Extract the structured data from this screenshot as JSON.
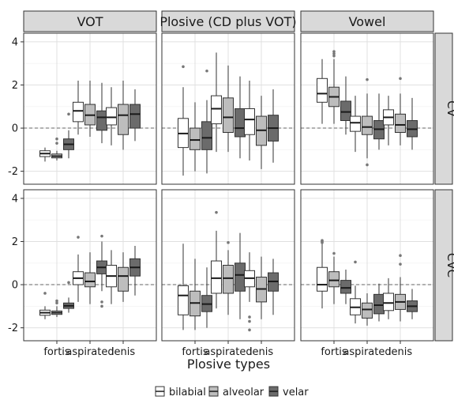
{
  "chart_data": {
    "type": "boxplot",
    "xlabel": "Plosive types",
    "ylabel": "",
    "ylim": [
      -2.6,
      4.4
    ],
    "yticks": [
      -2,
      0,
      2,
      4
    ],
    "x_categories": [
      "fortis",
      "aspirated",
      "lenis"
    ],
    "facet_columns": [
      "VOT",
      "Plosive (CD plus VOT)",
      "Vowel"
    ],
    "facet_rows": [
      "CV",
      "CVC"
    ],
    "reference_line_y": 0,
    "legend": {
      "position": "bottom",
      "items": [
        "bilabial",
        "alveolar",
        "velar"
      ]
    },
    "series_colors": {
      "bilabial": "#ffffff",
      "alveolar": "#bdbdbd",
      "velar": "#6b6b6b"
    },
    "panels": [
      {
        "col": 0,
        "row": 0,
        "boxes": [
          {
            "cat": "fortis",
            "series": "bilabial",
            "lw": -1.55,
            "q1": -1.32,
            "med": -1.18,
            "q3": -1.05,
            "uw": -0.9,
            "outliers": []
          },
          {
            "cat": "fortis",
            "series": "alveolar",
            "lw": -1.5,
            "q1": -1.38,
            "med": -1.3,
            "q3": -1.2,
            "uw": -1.05,
            "outliers": [
              -0.5,
              -0.7
            ]
          },
          {
            "cat": "fortis",
            "series": "velar",
            "lw": -1.4,
            "q1": -1.0,
            "med": -0.75,
            "q3": -0.5,
            "uw": -0.1,
            "outliers": [
              0.65
            ]
          },
          {
            "cat": "aspirated",
            "series": "bilabial",
            "lw": -0.3,
            "q1": 0.3,
            "med": 0.8,
            "q3": 1.2,
            "uw": 2.2,
            "outliers": []
          },
          {
            "cat": "aspirated",
            "series": "alveolar",
            "lw": -0.4,
            "q1": 0.15,
            "med": 0.6,
            "q3": 1.1,
            "uw": 2.2,
            "outliers": []
          },
          {
            "cat": "aspirated",
            "series": "velar",
            "lw": -0.7,
            "q1": -0.1,
            "med": 0.5,
            "q3": 0.8,
            "uw": 2.1,
            "outliers": []
          },
          {
            "cat": "lenis",
            "series": "bilabial",
            "lw": -0.8,
            "q1": 0.15,
            "med": 0.5,
            "q3": 0.95,
            "uw": 1.9,
            "outliers": []
          },
          {
            "cat": "lenis",
            "series": "alveolar",
            "lw": -1.0,
            "q1": -0.3,
            "med": 0.6,
            "q3": 1.1,
            "uw": 2.2,
            "outliers": []
          },
          {
            "cat": "lenis",
            "series": "velar",
            "lw": -0.6,
            "q1": 0.0,
            "med": 0.65,
            "q3": 1.1,
            "uw": 1.8,
            "outliers": []
          }
        ]
      },
      {
        "col": 1,
        "row": 0,
        "boxes": [
          {
            "cat": "fortis",
            "series": "bilabial",
            "lw": -2.2,
            "q1": -0.9,
            "med": -0.25,
            "q3": 0.45,
            "uw": 1.9,
            "outliers": [
              2.85
            ]
          },
          {
            "cat": "fortis",
            "series": "alveolar",
            "lw": -2.0,
            "q1": -1.0,
            "med": -0.55,
            "q3": 0.0,
            "uw": 1.2,
            "outliers": []
          },
          {
            "cat": "fortis",
            "series": "velar",
            "lw": -2.1,
            "q1": -1.0,
            "med": -0.45,
            "q3": 0.3,
            "uw": 1.3,
            "outliers": [
              2.65
            ]
          },
          {
            "cat": "aspirated",
            "series": "bilabial",
            "lw": -1.1,
            "q1": 0.2,
            "med": 0.9,
            "q3": 1.5,
            "uw": 3.5,
            "outliers": []
          },
          {
            "cat": "aspirated",
            "series": "alveolar",
            "lw": -1.1,
            "q1": -0.2,
            "med": 0.5,
            "q3": 1.4,
            "uw": 2.9,
            "outliers": []
          },
          {
            "cat": "aspirated",
            "series": "velar",
            "lw": -1.4,
            "q1": -0.4,
            "med": 0.0,
            "q3": 0.9,
            "uw": 2.4,
            "outliers": []
          },
          {
            "cat": "lenis",
            "series": "bilabial",
            "lw": -1.5,
            "q1": -0.3,
            "med": 0.4,
            "q3": 0.9,
            "uw": 2.2,
            "outliers": []
          },
          {
            "cat": "lenis",
            "series": "alveolar",
            "lw": -1.9,
            "q1": -0.8,
            "med": -0.1,
            "q3": 0.55,
            "uw": 1.5,
            "outliers": []
          },
          {
            "cat": "lenis",
            "series": "velar",
            "lw": -1.6,
            "q1": -0.6,
            "med": 0.0,
            "q3": 0.6,
            "uw": 1.8,
            "outliers": []
          }
        ]
      },
      {
        "col": 2,
        "row": 0,
        "boxes": [
          {
            "cat": "fortis",
            "series": "bilabial",
            "lw": 0.2,
            "q1": 1.2,
            "med": 1.6,
            "q3": 2.3,
            "uw": 3.2,
            "outliers": []
          },
          {
            "cat": "fortis",
            "series": "alveolar",
            "lw": 0.2,
            "q1": 1.0,
            "med": 1.45,
            "q3": 1.9,
            "uw": 3.2,
            "outliers": [
              3.45,
              3.35,
              3.55
            ]
          },
          {
            "cat": "fortis",
            "series": "velar",
            "lw": -0.3,
            "q1": 0.35,
            "med": 0.75,
            "q3": 1.25,
            "uw": 2.4,
            "outliers": []
          },
          {
            "cat": "aspirated",
            "series": "bilabial",
            "lw": -1.1,
            "q1": -0.15,
            "med": 0.25,
            "q3": 0.55,
            "uw": 1.5,
            "outliers": []
          },
          {
            "cat": "aspirated",
            "series": "alveolar",
            "lw": -1.4,
            "q1": -0.3,
            "med": 0.05,
            "q3": 0.55,
            "uw": 1.6,
            "outliers": [
              2.25,
              -1.7
            ]
          },
          {
            "cat": "aspirated",
            "series": "velar",
            "lw": -1.0,
            "q1": -0.5,
            "med": -0.05,
            "q3": 0.35,
            "uw": 1.6,
            "outliers": []
          },
          {
            "cat": "lenis",
            "series": "bilabial",
            "lw": -0.8,
            "q1": 0.15,
            "med": 0.5,
            "q3": 0.85,
            "uw": 1.5,
            "outliers": []
          },
          {
            "cat": "lenis",
            "series": "alveolar",
            "lw": -0.8,
            "q1": -0.2,
            "med": 0.15,
            "q3": 0.65,
            "uw": 1.6,
            "outliers": [
              2.3
            ]
          },
          {
            "cat": "lenis",
            "series": "velar",
            "lw": -1.0,
            "q1": -0.4,
            "med": -0.05,
            "q3": 0.35,
            "uw": 1.4,
            "outliers": []
          }
        ]
      },
      {
        "col": 0,
        "row": 1,
        "boxes": [
          {
            "cat": "fortis",
            "series": "bilabial",
            "lw": -1.6,
            "q1": -1.42,
            "med": -1.3,
            "q3": -1.18,
            "uw": -1.0,
            "outliers": [
              -0.4
            ]
          },
          {
            "cat": "fortis",
            "series": "alveolar",
            "lw": -1.5,
            "q1": -1.38,
            "med": -1.3,
            "q3": -1.22,
            "uw": -1.0,
            "outliers": [
              -0.75,
              -0.85
            ]
          },
          {
            "cat": "fortis",
            "series": "velar",
            "lw": -1.3,
            "q1": -1.1,
            "med": -0.98,
            "q3": -0.85,
            "uw": -0.6,
            "outliers": [
              0.1
            ]
          },
          {
            "cat": "aspirated",
            "series": "bilabial",
            "lw": -0.8,
            "q1": 0.0,
            "med": 0.3,
            "q3": 0.6,
            "uw": 1.4,
            "outliers": [
              2.2
            ]
          },
          {
            "cat": "aspirated",
            "series": "alveolar",
            "lw": -0.9,
            "q1": -0.1,
            "med": 0.15,
            "q3": 0.55,
            "uw": 1.5,
            "outliers": []
          },
          {
            "cat": "aspirated",
            "series": "velar",
            "lw": -0.3,
            "q1": 0.5,
            "med": 0.8,
            "q3": 1.1,
            "uw": 2.0,
            "outliers": [
              2.25,
              -0.8,
              -1.0
            ]
          },
          {
            "cat": "lenis",
            "series": "bilabial",
            "lw": -0.9,
            "q1": -0.1,
            "med": 0.4,
            "q3": 0.9,
            "uw": 1.6,
            "outliers": []
          },
          {
            "cat": "lenis",
            "series": "alveolar",
            "lw": -0.8,
            "q1": -0.3,
            "med": 0.4,
            "q3": 0.8,
            "uw": 1.5,
            "outliers": []
          },
          {
            "cat": "lenis",
            "series": "velar",
            "lw": -0.5,
            "q1": 0.4,
            "med": 0.8,
            "q3": 1.2,
            "uw": 1.8,
            "outliers": []
          }
        ]
      },
      {
        "col": 1,
        "row": 1,
        "boxes": [
          {
            "cat": "fortis",
            "series": "bilabial",
            "lw": -2.1,
            "q1": -1.4,
            "med": -0.5,
            "q3": -0.05,
            "uw": 1.9,
            "outliers": []
          },
          {
            "cat": "fortis",
            "series": "alveolar",
            "lw": -2.1,
            "q1": -1.45,
            "med": -0.85,
            "q3": -0.3,
            "uw": 1.2,
            "outliers": []
          },
          {
            "cat": "fortis",
            "series": "velar",
            "lw": -2.0,
            "q1": -1.25,
            "med": -0.9,
            "q3": -0.5,
            "uw": 0.8,
            "outliers": []
          },
          {
            "cat": "aspirated",
            "series": "bilabial",
            "lw": -1.1,
            "q1": -0.4,
            "med": 0.3,
            "q3": 1.1,
            "uw": 2.5,
            "outliers": [
              3.35
            ]
          },
          {
            "cat": "aspirated",
            "series": "alveolar",
            "lw": -1.4,
            "q1": -0.4,
            "med": 0.3,
            "q3": 0.9,
            "uw": 1.6,
            "outliers": [
              1.95
            ]
          },
          {
            "cat": "aspirated",
            "series": "velar",
            "lw": -1.6,
            "q1": -0.3,
            "med": 0.45,
            "q3": 1.0,
            "uw": 2.4,
            "outliers": []
          },
          {
            "cat": "lenis",
            "series": "bilabial",
            "lw": -0.8,
            "q1": -0.1,
            "med": 0.3,
            "q3": 0.65,
            "uw": 1.5,
            "outliers": [
              -1.5,
              -1.7,
              -2.1
            ]
          },
          {
            "cat": "lenis",
            "series": "alveolar",
            "lw": -1.6,
            "q1": -0.8,
            "med": -0.2,
            "q3": 0.35,
            "uw": 1.3,
            "outliers": []
          },
          {
            "cat": "lenis",
            "series": "velar",
            "lw": -1.4,
            "q1": -0.3,
            "med": 0.15,
            "q3": 0.55,
            "uw": 1.2,
            "outliers": []
          }
        ]
      },
      {
        "col": 2,
        "row": 1,
        "boxes": [
          {
            "cat": "fortis",
            "series": "bilabial",
            "lw": -1.1,
            "q1": -0.3,
            "med": 0.0,
            "q3": 0.8,
            "uw": 1.9,
            "outliers": [
              2.05,
              1.95,
              2.0
            ]
          },
          {
            "cat": "fortis",
            "series": "alveolar",
            "lw": -0.9,
            "q1": -0.1,
            "med": 0.2,
            "q3": 0.6,
            "uw": 1.3,
            "outliers": [
              1.45
            ]
          },
          {
            "cat": "fortis",
            "series": "velar",
            "lw": -0.9,
            "q1": -0.4,
            "med": -0.15,
            "q3": 0.2,
            "uw": 0.7,
            "outliers": []
          },
          {
            "cat": "aspirated",
            "series": "bilabial",
            "lw": -1.8,
            "q1": -1.4,
            "med": -1.05,
            "q3": -0.65,
            "uw": -0.05,
            "outliers": [
              1.05
            ]
          },
          {
            "cat": "aspirated",
            "series": "alveolar",
            "lw": -1.9,
            "q1": -1.55,
            "med": -1.15,
            "q3": -0.85,
            "uw": -0.4,
            "outliers": []
          },
          {
            "cat": "aspirated",
            "series": "velar",
            "lw": -1.7,
            "q1": -1.35,
            "med": -0.95,
            "q3": -0.45,
            "uw": 0.05,
            "outliers": []
          },
          {
            "cat": "lenis",
            "series": "bilabial",
            "lw": -1.6,
            "q1": -1.2,
            "med": -0.85,
            "q3": -0.4,
            "uw": 0.3,
            "outliers": []
          },
          {
            "cat": "lenis",
            "series": "alveolar",
            "lw": -1.7,
            "q1": -1.15,
            "med": -0.8,
            "q3": -0.45,
            "uw": 0.35,
            "outliers": [
              0.95,
              1.35
            ]
          },
          {
            "cat": "lenis",
            "series": "velar",
            "lw": -1.6,
            "q1": -1.25,
            "med": -1.0,
            "q3": -0.75,
            "uw": -0.2,
            "outliers": []
          }
        ]
      }
    ]
  }
}
